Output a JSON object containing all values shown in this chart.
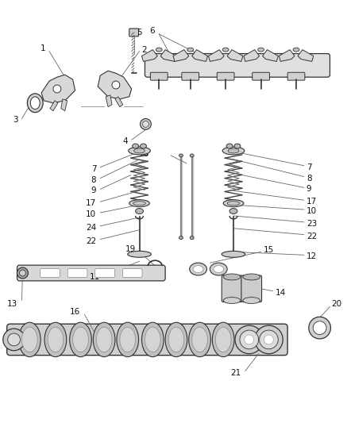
{
  "bg_color": "#ffffff",
  "line_color": "#333333",
  "label_color": "#111111",
  "fig_width": 4.37,
  "fig_height": 5.33,
  "dpi": 100
}
